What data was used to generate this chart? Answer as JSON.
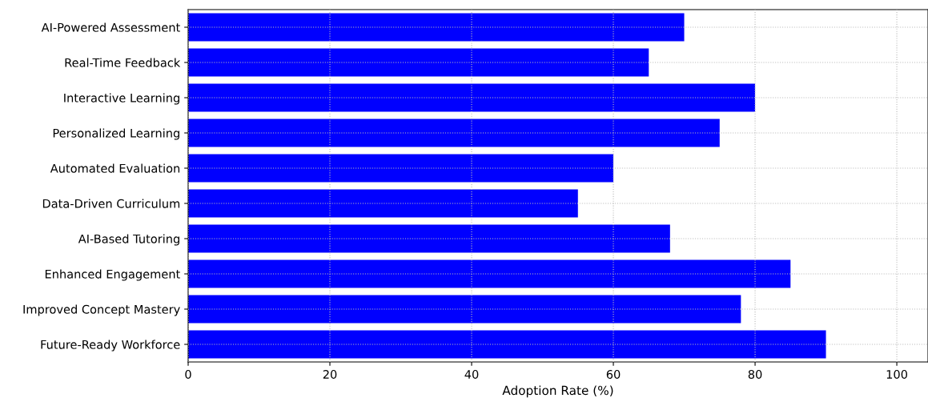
{
  "chart_data": {
    "type": "bar",
    "orientation": "horizontal",
    "xlabel": "Adoption Rate (%)",
    "categories": [
      "AI-Powered Assessment",
      "Real-Time Feedback",
      "Interactive Learning",
      "Personalized Learning",
      "Automated Evaluation",
      "Data-Driven Curriculum",
      "AI-Based Tutoring",
      "Enhanced Engagement",
      "Improved Concept Mastery",
      "Future-Ready Workforce"
    ],
    "values": [
      70,
      65,
      80,
      75,
      60,
      55,
      68,
      85,
      78,
      90
    ],
    "color": "#0000ff",
    "xlim": [
      0,
      104.4
    ],
    "xticks": [
      0,
      20,
      40,
      60,
      80,
      100
    ],
    "grid": true,
    "line_style": "dotted"
  }
}
